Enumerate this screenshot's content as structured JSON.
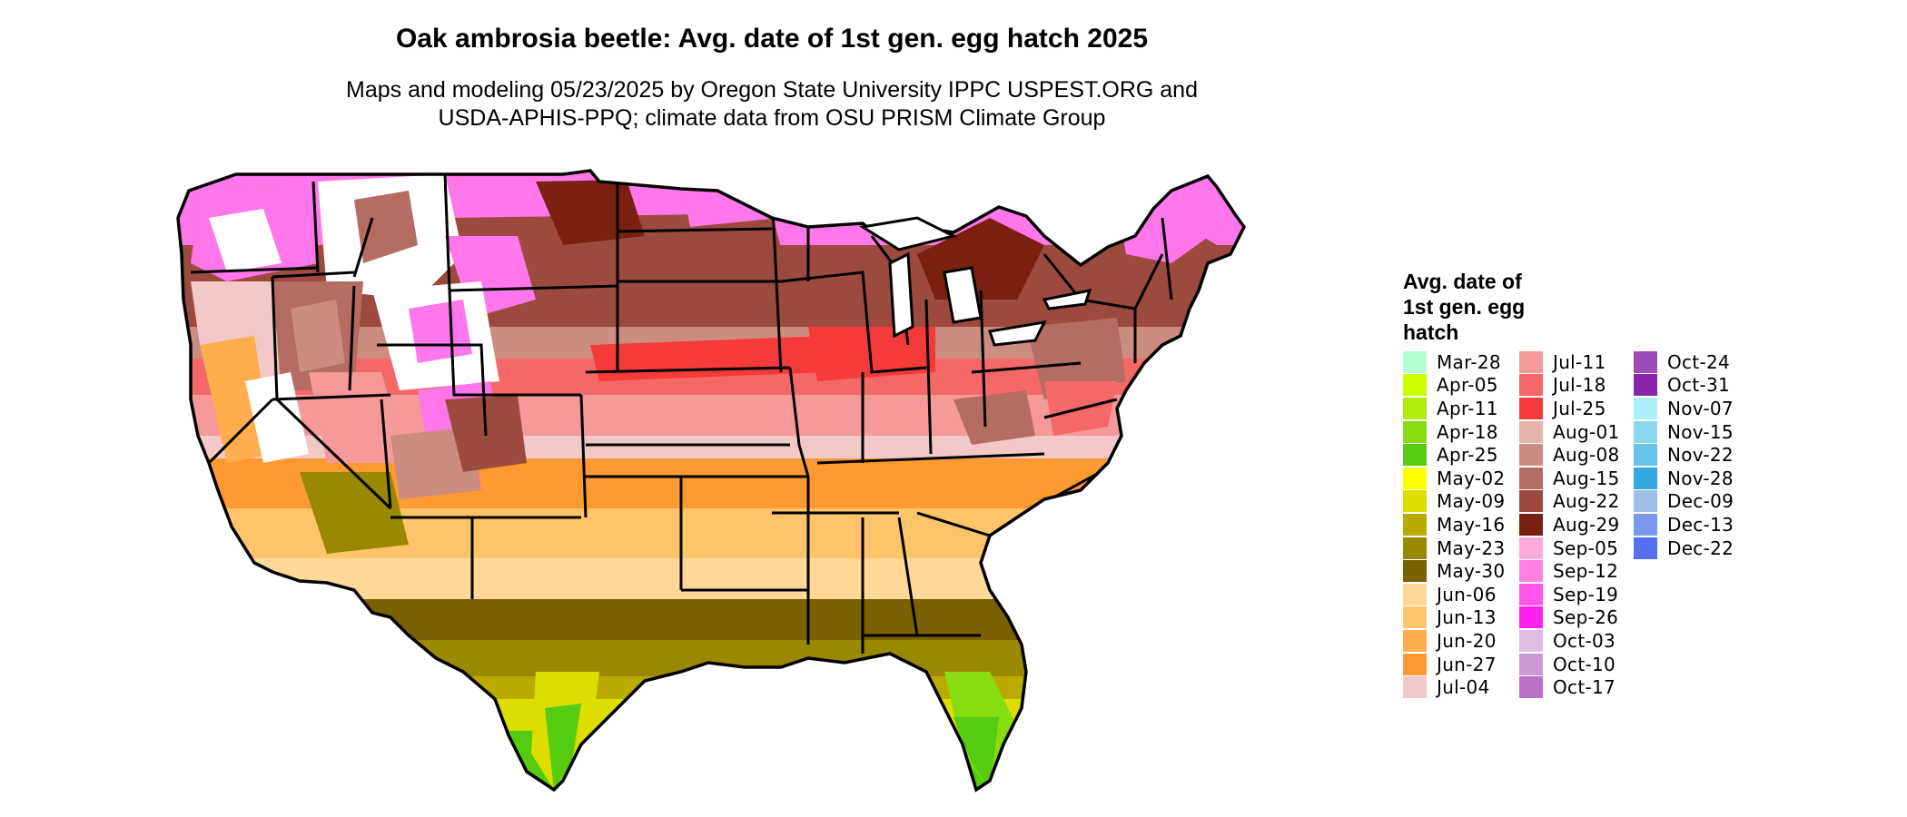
{
  "title": "Oak ambrosia beetle: Avg. date of 1st gen. egg hatch 2025",
  "subtitle_line1": "Maps and modeling 05/23/2025 by Oregon State University IPPC USPEST.ORG and",
  "subtitle_line2": "USDA-APHIS-PPQ; climate data from OSU PRISM Climate Group",
  "legend": {
    "title_line1": "Avg. date of",
    "title_line2": "1st gen. egg",
    "title_line3": "hatch",
    "columns": [
      [
        {
          "label": "Mar-28",
          "color": "#b3ffd0"
        },
        {
          "label": "Apr-05",
          "color": "#ccff00"
        },
        {
          "label": "Apr-11",
          "color": "#b0ee10"
        },
        {
          "label": "Apr-18",
          "color": "#88dd10"
        },
        {
          "label": "Apr-25",
          "color": "#55cc10"
        },
        {
          "label": "May-02",
          "color": "#ffff00"
        },
        {
          "label": "May-09",
          "color": "#dddd00"
        },
        {
          "label": "May-16",
          "color": "#bbaa00"
        },
        {
          "label": "May-23",
          "color": "#998800"
        },
        {
          "label": "May-30",
          "color": "#7a6000"
        },
        {
          "label": "Jun-06",
          "color": "#ffd898"
        },
        {
          "label": "Jun-13",
          "color": "#ffc46a"
        },
        {
          "label": "Jun-20",
          "color": "#ffad4d"
        },
        {
          "label": "Jun-27",
          "color": "#ff9a33"
        },
        {
          "label": "Jul-04",
          "color": "#f2c8c8"
        }
      ],
      [
        {
          "label": "Jul-11",
          "color": "#f59999"
        },
        {
          "label": "Jul-18",
          "color": "#f56868"
        },
        {
          "label": "Jul-25",
          "color": "#f53a3a"
        },
        {
          "label": "Aug-01",
          "color": "#e4b4aa"
        },
        {
          "label": "Aug-08",
          "color": "#cc8c80"
        },
        {
          "label": "Aug-15",
          "color": "#b56c62"
        },
        {
          "label": "Aug-22",
          "color": "#9c4a3e"
        },
        {
          "label": "Aug-29",
          "color": "#7a2010"
        },
        {
          "label": "Sep-05",
          "color": "#ffaadd"
        },
        {
          "label": "Sep-12",
          "color": "#ff80e0"
        },
        {
          "label": "Sep-19",
          "color": "#ff55e8"
        },
        {
          "label": "Sep-26",
          "color": "#ff22ee"
        },
        {
          "label": "Oct-03",
          "color": "#e0bce4"
        },
        {
          "label": "Oct-10",
          "color": "#cc99d6"
        },
        {
          "label": "Oct-17",
          "color": "#b870c8"
        }
      ],
      [
        {
          "label": "Oct-24",
          "color": "#9f4cba"
        },
        {
          "label": "Oct-31",
          "color": "#8a22aa"
        },
        {
          "label": "Nov-07",
          "color": "#aaeeff"
        },
        {
          "label": "Nov-15",
          "color": "#88d8f0"
        },
        {
          "label": "Nov-22",
          "color": "#66c4ea"
        },
        {
          "label": "Nov-28",
          "color": "#33a8e0"
        },
        {
          "label": "Dec-09",
          "color": "#9ec0e6"
        },
        {
          "label": "Dec-13",
          "color": "#7a98ec"
        },
        {
          "label": "Dec-22",
          "color": "#5570f5"
        }
      ]
    ]
  }
}
